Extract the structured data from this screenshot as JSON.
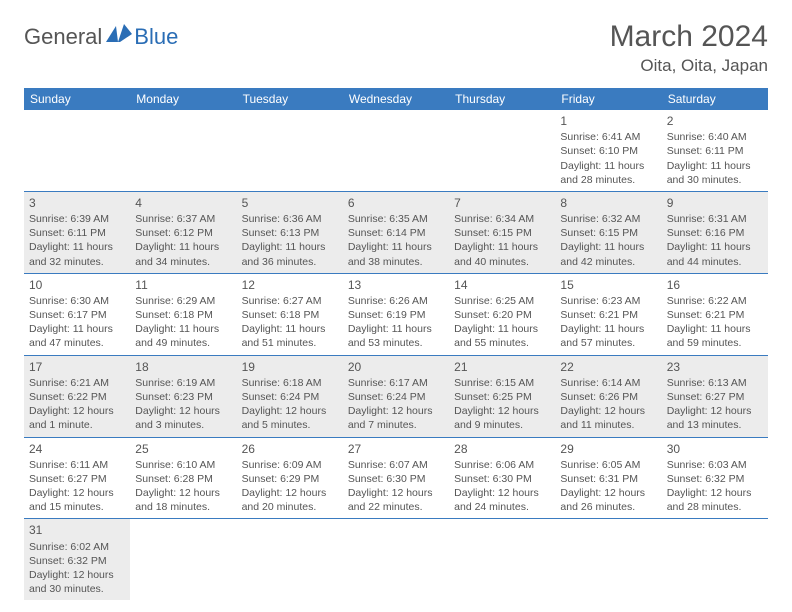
{
  "logo": {
    "part1": "General",
    "part2": "Blue"
  },
  "title": "March 2024",
  "location": "Oita, Oita, Japan",
  "colors": {
    "header_bg": "#3a7bc0",
    "header_text": "#ffffff",
    "body_text": "#555555",
    "shaded_bg": "#ececec",
    "accent": "#2a6db5",
    "rule": "#3a7bc0"
  },
  "dayNames": [
    "Sunday",
    "Monday",
    "Tuesday",
    "Wednesday",
    "Thursday",
    "Friday",
    "Saturday"
  ],
  "weeks": [
    [
      {
        "blank": true
      },
      {
        "blank": true
      },
      {
        "blank": true
      },
      {
        "blank": true
      },
      {
        "blank": true
      },
      {
        "day": 1,
        "sunrise": "Sunrise: 6:41 AM",
        "sunset": "Sunset: 6:10 PM",
        "daylight": "Daylight: 11 hours and 28 minutes."
      },
      {
        "day": 2,
        "sunrise": "Sunrise: 6:40 AM",
        "sunset": "Sunset: 6:11 PM",
        "daylight": "Daylight: 11 hours and 30 minutes."
      }
    ],
    [
      {
        "day": 3,
        "shaded": true,
        "sunrise": "Sunrise: 6:39 AM",
        "sunset": "Sunset: 6:11 PM",
        "daylight": "Daylight: 11 hours and 32 minutes."
      },
      {
        "day": 4,
        "shaded": true,
        "sunrise": "Sunrise: 6:37 AM",
        "sunset": "Sunset: 6:12 PM",
        "daylight": "Daylight: 11 hours and 34 minutes."
      },
      {
        "day": 5,
        "shaded": true,
        "sunrise": "Sunrise: 6:36 AM",
        "sunset": "Sunset: 6:13 PM",
        "daylight": "Daylight: 11 hours and 36 minutes."
      },
      {
        "day": 6,
        "shaded": true,
        "sunrise": "Sunrise: 6:35 AM",
        "sunset": "Sunset: 6:14 PM",
        "daylight": "Daylight: 11 hours and 38 minutes."
      },
      {
        "day": 7,
        "shaded": true,
        "sunrise": "Sunrise: 6:34 AM",
        "sunset": "Sunset: 6:15 PM",
        "daylight": "Daylight: 11 hours and 40 minutes."
      },
      {
        "day": 8,
        "shaded": true,
        "sunrise": "Sunrise: 6:32 AM",
        "sunset": "Sunset: 6:15 PM",
        "daylight": "Daylight: 11 hours and 42 minutes."
      },
      {
        "day": 9,
        "shaded": true,
        "sunrise": "Sunrise: 6:31 AM",
        "sunset": "Sunset: 6:16 PM",
        "daylight": "Daylight: 11 hours and 44 minutes."
      }
    ],
    [
      {
        "day": 10,
        "sunrise": "Sunrise: 6:30 AM",
        "sunset": "Sunset: 6:17 PM",
        "daylight": "Daylight: 11 hours and 47 minutes."
      },
      {
        "day": 11,
        "sunrise": "Sunrise: 6:29 AM",
        "sunset": "Sunset: 6:18 PM",
        "daylight": "Daylight: 11 hours and 49 minutes."
      },
      {
        "day": 12,
        "sunrise": "Sunrise: 6:27 AM",
        "sunset": "Sunset: 6:18 PM",
        "daylight": "Daylight: 11 hours and 51 minutes."
      },
      {
        "day": 13,
        "sunrise": "Sunrise: 6:26 AM",
        "sunset": "Sunset: 6:19 PM",
        "daylight": "Daylight: 11 hours and 53 minutes."
      },
      {
        "day": 14,
        "sunrise": "Sunrise: 6:25 AM",
        "sunset": "Sunset: 6:20 PM",
        "daylight": "Daylight: 11 hours and 55 minutes."
      },
      {
        "day": 15,
        "sunrise": "Sunrise: 6:23 AM",
        "sunset": "Sunset: 6:21 PM",
        "daylight": "Daylight: 11 hours and 57 minutes."
      },
      {
        "day": 16,
        "sunrise": "Sunrise: 6:22 AM",
        "sunset": "Sunset: 6:21 PM",
        "daylight": "Daylight: 11 hours and 59 minutes."
      }
    ],
    [
      {
        "day": 17,
        "shaded": true,
        "sunrise": "Sunrise: 6:21 AM",
        "sunset": "Sunset: 6:22 PM",
        "daylight": "Daylight: 12 hours and 1 minute."
      },
      {
        "day": 18,
        "shaded": true,
        "sunrise": "Sunrise: 6:19 AM",
        "sunset": "Sunset: 6:23 PM",
        "daylight": "Daylight: 12 hours and 3 minutes."
      },
      {
        "day": 19,
        "shaded": true,
        "sunrise": "Sunrise: 6:18 AM",
        "sunset": "Sunset: 6:24 PM",
        "daylight": "Daylight: 12 hours and 5 minutes."
      },
      {
        "day": 20,
        "shaded": true,
        "sunrise": "Sunrise: 6:17 AM",
        "sunset": "Sunset: 6:24 PM",
        "daylight": "Daylight: 12 hours and 7 minutes."
      },
      {
        "day": 21,
        "shaded": true,
        "sunrise": "Sunrise: 6:15 AM",
        "sunset": "Sunset: 6:25 PM",
        "daylight": "Daylight: 12 hours and 9 minutes."
      },
      {
        "day": 22,
        "shaded": true,
        "sunrise": "Sunrise: 6:14 AM",
        "sunset": "Sunset: 6:26 PM",
        "daylight": "Daylight: 12 hours and 11 minutes."
      },
      {
        "day": 23,
        "shaded": true,
        "sunrise": "Sunrise: 6:13 AM",
        "sunset": "Sunset: 6:27 PM",
        "daylight": "Daylight: 12 hours and 13 minutes."
      }
    ],
    [
      {
        "day": 24,
        "sunrise": "Sunrise: 6:11 AM",
        "sunset": "Sunset: 6:27 PM",
        "daylight": "Daylight: 12 hours and 15 minutes."
      },
      {
        "day": 25,
        "sunrise": "Sunrise: 6:10 AM",
        "sunset": "Sunset: 6:28 PM",
        "daylight": "Daylight: 12 hours and 18 minutes."
      },
      {
        "day": 26,
        "sunrise": "Sunrise: 6:09 AM",
        "sunset": "Sunset: 6:29 PM",
        "daylight": "Daylight: 12 hours and 20 minutes."
      },
      {
        "day": 27,
        "sunrise": "Sunrise: 6:07 AM",
        "sunset": "Sunset: 6:30 PM",
        "daylight": "Daylight: 12 hours and 22 minutes."
      },
      {
        "day": 28,
        "sunrise": "Sunrise: 6:06 AM",
        "sunset": "Sunset: 6:30 PM",
        "daylight": "Daylight: 12 hours and 24 minutes."
      },
      {
        "day": 29,
        "sunrise": "Sunrise: 6:05 AM",
        "sunset": "Sunset: 6:31 PM",
        "daylight": "Daylight: 12 hours and 26 minutes."
      },
      {
        "day": 30,
        "sunrise": "Sunrise: 6:03 AM",
        "sunset": "Sunset: 6:32 PM",
        "daylight": "Daylight: 12 hours and 28 minutes."
      }
    ],
    [
      {
        "day": 31,
        "shaded": true,
        "sunrise": "Sunrise: 6:02 AM",
        "sunset": "Sunset: 6:32 PM",
        "daylight": "Daylight: 12 hours and 30 minutes."
      },
      {
        "blank": true
      },
      {
        "blank": true
      },
      {
        "blank": true
      },
      {
        "blank": true
      },
      {
        "blank": true
      },
      {
        "blank": true
      }
    ]
  ]
}
